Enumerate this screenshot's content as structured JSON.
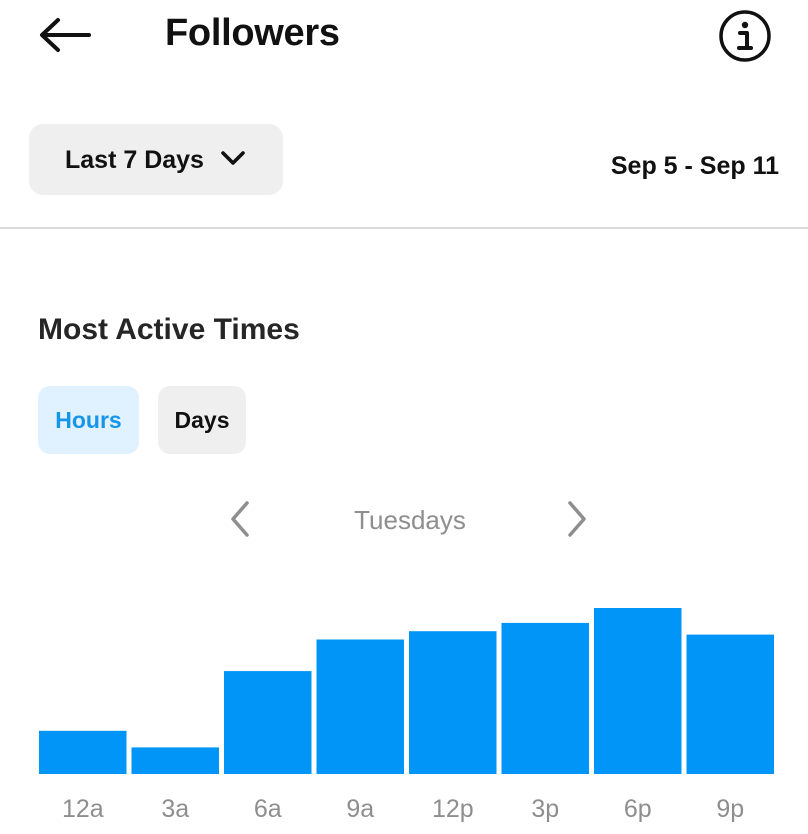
{
  "header": {
    "title": "Followers",
    "back_icon": "back-arrow-icon",
    "info_icon": "info-icon"
  },
  "filter": {
    "range_label": "Last 7 Days",
    "dropdown_icon": "chevron-down-icon",
    "date_range": "Sep 5 - Sep 11"
  },
  "section": {
    "title": "Most Active Times",
    "toggle": {
      "hours_label": "Hours",
      "days_label": "Days",
      "selected": "Hours"
    },
    "pager": {
      "label": "Tuesdays",
      "prev_icon": "chevron-left-icon",
      "next_icon": "chevron-right-icon"
    }
  },
  "colors": {
    "bar": "#0095f6",
    "tick_label": "#8e8e8e",
    "selected_toggle_bg": "#e0f1ff",
    "selected_toggle_text": "#1795e8"
  },
  "chart_data": {
    "type": "bar",
    "categories": [
      "12a",
      "3a",
      "6a",
      "9a",
      "12p",
      "3p",
      "6p",
      "9p"
    ],
    "values": [
      26,
      16,
      62,
      81,
      86,
      91,
      100,
      84
    ],
    "ylim": [
      0,
      100
    ],
    "grid": false,
    "title": "",
    "xlabel": "",
    "ylabel": ""
  }
}
